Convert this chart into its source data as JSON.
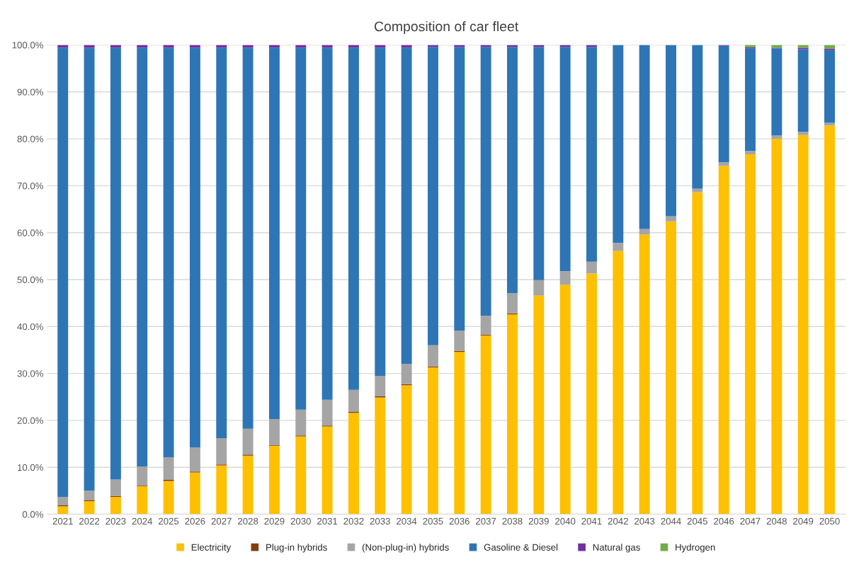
{
  "chart_data": {
    "type": "bar",
    "stacked": true,
    "title": "Composition of car fleet",
    "categories": [
      "2021",
      "2022",
      "2023",
      "2024",
      "2025",
      "2026",
      "2027",
      "2028",
      "2029",
      "2030",
      "2031",
      "2032",
      "2033",
      "2034",
      "2035",
      "2036",
      "2037",
      "2038",
      "2039",
      "2040",
      "2041",
      "2042",
      "2043",
      "2044",
      "2045",
      "2046",
      "2047",
      "2048",
      "2049",
      "2050"
    ],
    "series": [
      {
        "name": "Electricity",
        "color": "#ffc000",
        "values": [
          1.7,
          2.8,
          3.7,
          6.0,
          7.1,
          8.9,
          10.4,
          12.5,
          14.6,
          16.6,
          18.7,
          21.6,
          24.9,
          27.5,
          31.3,
          34.6,
          38.1,
          42.6,
          46.6,
          48.9,
          51.3,
          56.1,
          59.6,
          62.4,
          68.6,
          74.2,
          76.7,
          80.0,
          80.8,
          82.8
        ]
      },
      {
        "name": "Plug-in hybrids",
        "color": "#843c0c",
        "values": [
          0.2,
          0.2,
          0.2,
          0.2,
          0.2,
          0.2,
          0.2,
          0.2,
          0.2,
          0.2,
          0.2,
          0.2,
          0.2,
          0.2,
          0.2,
          0.2,
          0.2,
          0.2,
          null,
          null,
          null,
          null,
          null,
          null,
          null,
          null,
          null,
          null,
          null,
          null
        ]
      },
      {
        "name": "(Non-plug-in) hybrids",
        "color": "#a5a5a5",
        "values": [
          1.8,
          2.0,
          3.5,
          4.0,
          4.8,
          5.1,
          5.6,
          5.5,
          5.5,
          5.5,
          5.5,
          4.7,
          4.4,
          4.3,
          4.5,
          4.3,
          4.0,
          4.3,
          3.3,
          2.9,
          2.5,
          1.7,
          1.2,
          1.1,
          0.8,
          0.8,
          0.7,
          0.7,
          0.7,
          0.6
        ]
      },
      {
        "name": "Gasoline & Diesel",
        "color": "#2e75b6",
        "values": [
          95.7,
          94.4,
          92.0,
          89.2,
          87.3,
          85.2,
          83.2,
          81.2,
          79.1,
          77.1,
          75.0,
          72.9,
          69.9,
          67.4,
          63.6,
          60.5,
          57.3,
          52.5,
          49.7,
          47.8,
          45.8,
          42.2,
          39.2,
          36.5,
          30.6,
          24.8,
          21.9,
          18.6,
          17.6,
          15.5
        ]
      },
      {
        "name": "Natural gas",
        "color": "#7030a0",
        "values": [
          0.6,
          0.6,
          0.6,
          0.6,
          0.6,
          0.6,
          0.6,
          0.6,
          0.6,
          0.6,
          0.6,
          0.6,
          0.6,
          0.6,
          0.4,
          0.4,
          0.4,
          0.4,
          0.4,
          0.4,
          0.4,
          0,
          0,
          0,
          0,
          0.2,
          0.2,
          0.1,
          0.3,
          0.3
        ]
      },
      {
        "name": "Hydrogen",
        "color": "#70ad47",
        "values": [
          0,
          0,
          0,
          0,
          0,
          0,
          0,
          0,
          0,
          0,
          0,
          0,
          0,
          0,
          0,
          0,
          0,
          0,
          0,
          0,
          0,
          0,
          0,
          0,
          0,
          0,
          0.5,
          0.6,
          0.6,
          0.8
        ]
      }
    ],
    "ylim": [
      0,
      100
    ],
    "yticks": [
      {
        "value": 0,
        "label": "0.0%"
      },
      {
        "value": 10,
        "label": "10.0%"
      },
      {
        "value": 20,
        "label": "20.0%"
      },
      {
        "value": 30,
        "label": "30.0%"
      },
      {
        "value": 40,
        "label": "40.0%"
      },
      {
        "value": 50,
        "label": "50.0%"
      },
      {
        "value": 60,
        "label": "60.0%"
      },
      {
        "value": 70,
        "label": "70.0%"
      },
      {
        "value": 80,
        "label": "80.0%"
      },
      {
        "value": 90,
        "label": "90.0%"
      },
      {
        "value": 100,
        "label": "100.0%"
      }
    ],
    "grid": "y",
    "legend": "bottom"
  }
}
